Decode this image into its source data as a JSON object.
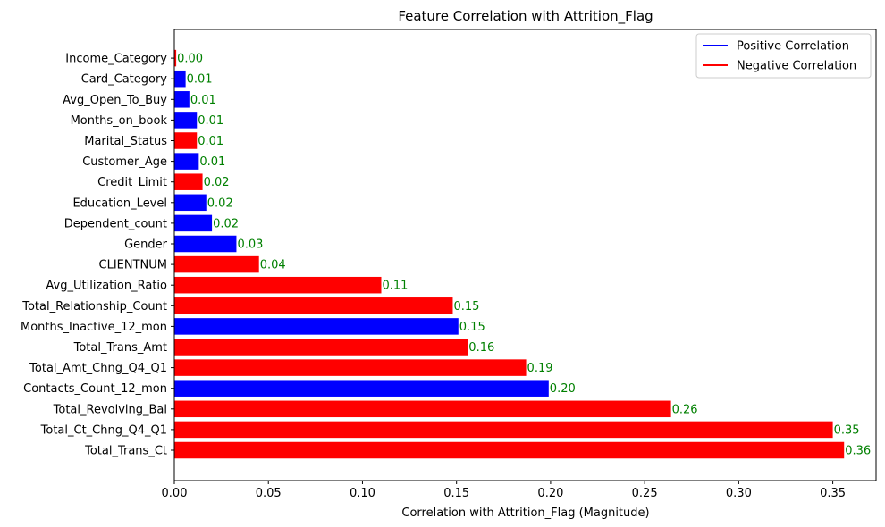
{
  "chart_data": {
    "type": "bar",
    "orientation": "horizontal",
    "title": "Feature Correlation with Attrition_Flag",
    "xlabel": "Correlation with Attrition_Flag (Magnitude)",
    "ylabel": "",
    "xlim": [
      0,
      0.373
    ],
    "xticks": [
      "0.00",
      "0.05",
      "0.10",
      "0.15",
      "0.20",
      "0.25",
      "0.30",
      "0.35"
    ],
    "legend": {
      "placement": "top-right",
      "entries": [
        {
          "label": "Positive Correlation",
          "color": "#0000ff"
        },
        {
          "label": "Negative Correlation",
          "color": "#ff0000"
        }
      ]
    },
    "colors": {
      "positive": "#0000ff",
      "negative": "#ff0000",
      "data_label": "#008000"
    },
    "bars": [
      {
        "category": "Total_Trans_Ct",
        "value": 0.356,
        "label": "0.36",
        "sign": "negative"
      },
      {
        "category": "Total_Ct_Chng_Q4_Q1",
        "value": 0.35,
        "label": "0.35",
        "sign": "negative"
      },
      {
        "category": "Total_Revolving_Bal",
        "value": 0.264,
        "label": "0.26",
        "sign": "negative"
      },
      {
        "category": "Contacts_Count_12_mon",
        "value": 0.199,
        "label": "0.20",
        "sign": "positive"
      },
      {
        "category": "Total_Amt_Chng_Q4_Q1",
        "value": 0.187,
        "label": "0.19",
        "sign": "negative"
      },
      {
        "category": "Total_Trans_Amt",
        "value": 0.156,
        "label": "0.16",
        "sign": "negative"
      },
      {
        "category": "Months_Inactive_12_mon",
        "value": 0.151,
        "label": "0.15",
        "sign": "positive"
      },
      {
        "category": "Total_Relationship_Count",
        "value": 0.148,
        "label": "0.15",
        "sign": "negative"
      },
      {
        "category": "Avg_Utilization_Ratio",
        "value": 0.11,
        "label": "0.11",
        "sign": "negative"
      },
      {
        "category": "CLIENTNUM",
        "value": 0.045,
        "label": "0.04",
        "sign": "negative"
      },
      {
        "category": "Gender",
        "value": 0.033,
        "label": "0.03",
        "sign": "positive"
      },
      {
        "category": "Dependent_count",
        "value": 0.02,
        "label": "0.02",
        "sign": "positive"
      },
      {
        "category": "Education_Level",
        "value": 0.017,
        "label": "0.02",
        "sign": "positive"
      },
      {
        "category": "Credit_Limit",
        "value": 0.015,
        "label": "0.02",
        "sign": "negative"
      },
      {
        "category": "Customer_Age",
        "value": 0.013,
        "label": "0.01",
        "sign": "positive"
      },
      {
        "category": "Marital_Status",
        "value": 0.012,
        "label": "0.01",
        "sign": "negative"
      },
      {
        "category": "Months_on_book",
        "value": 0.012,
        "label": "0.01",
        "sign": "positive"
      },
      {
        "category": "Avg_Open_To_Buy",
        "value": 0.008,
        "label": "0.01",
        "sign": "positive"
      },
      {
        "category": "Card_Category",
        "value": 0.006,
        "label": "0.01",
        "sign": "positive"
      },
      {
        "category": "Income_Category",
        "value": 0.001,
        "label": "0.00",
        "sign": "negative"
      }
    ]
  }
}
